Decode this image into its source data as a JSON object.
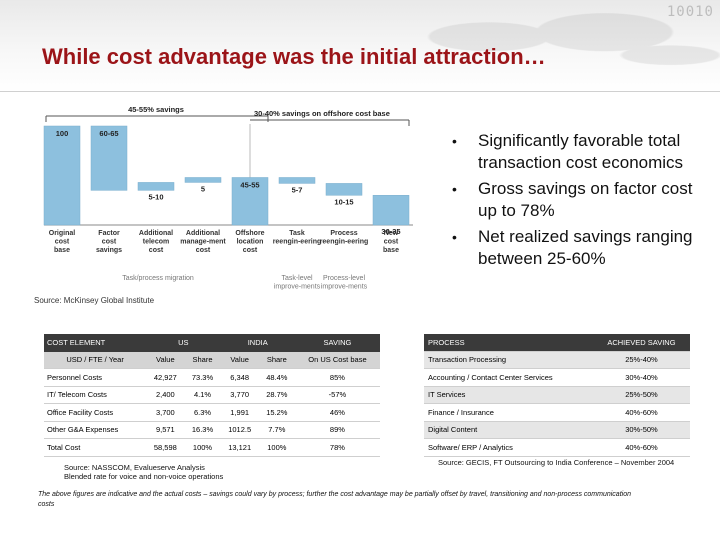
{
  "title": "While cost advantage was the initial attraction…",
  "decor_binary": "10010",
  "bullets": [
    "Significantly favorable total transaction cost economics",
    "Gross savings on factor cost up to 78%",
    "Net realized savings ranging between 25-60%"
  ],
  "chart_data": {
    "type": "bar",
    "subtype": "waterfall",
    "categories": [
      "Original cost base",
      "Factor cost savings",
      "Additional telecom cost",
      "Additional manage-ment cost",
      "Offshore location cost",
      "Task reengin-eering",
      "Process reengin-eering",
      "New cost base"
    ],
    "value_labels": [
      "100",
      "60-65",
      "5-10",
      "5",
      "45-55",
      "5-7",
      "10-15",
      "30-35"
    ],
    "bar_ranges": [
      [
        0,
        100
      ],
      [
        35,
        100
      ],
      [
        35,
        43
      ],
      [
        43,
        48
      ],
      [
        0,
        48
      ],
      [
        42,
        48
      ],
      [
        30,
        42
      ],
      [
        0,
        30
      ]
    ],
    "ylim": [
      0,
      100
    ],
    "brackets": [
      "45-55% savings",
      "30-40% savings on offshore cost base"
    ],
    "group_labels": [
      "Task/process migration",
      "Task-level improve-ments",
      "Process-level improve-ments"
    ],
    "colors": {
      "bar": "#8dc0de",
      "grey": "#bdbdbd"
    }
  },
  "source_chart": "Source: McKinsey Global Institute",
  "cost_table": {
    "headers": [
      "COST ELEMENT",
      "US",
      "INDIA",
      "SAVING"
    ],
    "subheaders": [
      "USD / FTE / Year",
      "Value",
      "Share",
      "Value",
      "Share",
      "On US Cost base"
    ],
    "rows": [
      [
        "Personnel Costs",
        "42,927",
        "73.3%",
        "6,348",
        "48.4%",
        "85%"
      ],
      [
        "IT/ Telecom Costs",
        "2,400",
        "4.1%",
        "3,770",
        "28.7%",
        "-57%"
      ],
      [
        "Office Facility Costs",
        "3,700",
        "6.3%",
        "1,991",
        "15.2%",
        "46%"
      ],
      [
        "Other G&A Expenses",
        "9,571",
        "16.3%",
        "1012.5",
        "7.7%",
        "89%"
      ],
      [
        "Total Cost",
        "58,598",
        "100%",
        "13,121",
        "100%",
        "78%"
      ]
    ]
  },
  "process_table": {
    "headers": [
      "PROCESS",
      "ACHIEVED SAVING"
    ],
    "rows": [
      [
        "Transaction Processing",
        "25%-40%"
      ],
      [
        "Accounting / Contact Center Services",
        "30%-40%"
      ],
      [
        "IT Services",
        "25%-50%"
      ],
      [
        "Finance / Insurance",
        "40%-60%"
      ],
      [
        "Digital Content",
        "30%-50%"
      ],
      [
        "Software/ ERP / Analytics",
        "40%-60%"
      ]
    ]
  },
  "source_cost": [
    "Source: NASSCOM, Evalueserve Analysis",
    "Blended rate for voice and non-voice operations"
  ],
  "source_process": "Source: GECIS, FT Outsourcing to India Conference – November 2004",
  "footnote": "The above figures are indicative and the actual costs – savings could vary by process; further the cost advantage may be partially offset by travel, transitioning and non-process communication costs"
}
